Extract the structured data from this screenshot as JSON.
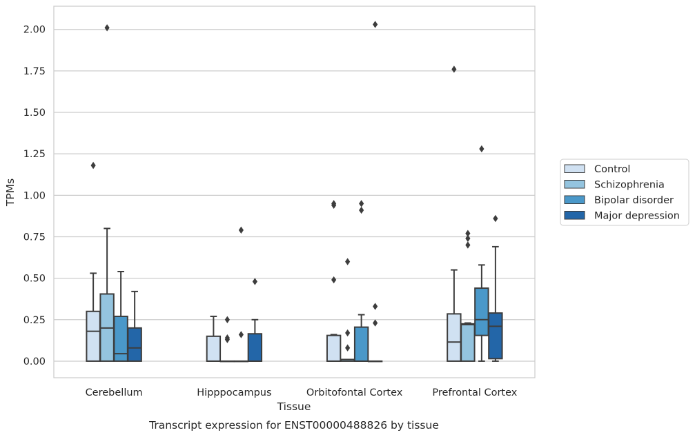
{
  "chart_data": {
    "type": "box",
    "title": "",
    "caption": "Transcript expression for ENST00000488826 by tissue",
    "xlabel": "Tissue",
    "ylabel": "TPMs",
    "ylim": [
      -0.1,
      2.14
    ],
    "yticks": [
      "0.00",
      "0.25",
      "0.50",
      "0.75",
      "1.00",
      "1.25",
      "1.50",
      "1.75",
      "2.00"
    ],
    "ytick_values": [
      0,
      0.25,
      0.5,
      0.75,
      1.0,
      1.25,
      1.5,
      1.75,
      2.0
    ],
    "grid": "horizontal",
    "legend_position": "right",
    "categories": [
      "Cerebellum",
      "Hipppocampus",
      "Orbitofontal Cortex",
      "Prefrontal Cortex"
    ],
    "series": [
      {
        "name": "Control",
        "color": "#d0e1f2",
        "boxes": [
          {
            "q1": 0,
            "median": 0.18,
            "q3": 0.3,
            "whisker_low": 0,
            "whisker_high": 0.53,
            "outliers": [
              1.18
            ]
          },
          {
            "q1": 0,
            "median": 0,
            "q3": 0.15,
            "whisker_low": 0,
            "whisker_high": 0.27,
            "outliers": []
          },
          {
            "q1": 0,
            "median": 0,
            "q3": 0.155,
            "whisker_low": 0,
            "whisker_high": 0.16,
            "outliers": [
              0.49,
              0.94,
              0.95
            ]
          },
          {
            "q1": 0,
            "median": 0.115,
            "q3": 0.285,
            "whisker_low": 0,
            "whisker_high": 0.55,
            "outliers": [
              1.76
            ]
          }
        ]
      },
      {
        "name": "Schizophrenia",
        "color": "#94c4df",
        "boxes": [
          {
            "q1": 0,
            "median": 0.2,
            "q3": 0.405,
            "whisker_low": 0,
            "whisker_high": 0.8,
            "outliers": [
              2.01
            ]
          },
          {
            "q1": 0,
            "median": 0,
            "q3": 0,
            "whisker_low": 0,
            "whisker_high": 0,
            "outliers": [
              0.13,
              0.14,
              0.25
            ]
          },
          {
            "q1": 0,
            "median": 0.01,
            "q3": 0.01,
            "whisker_low": 0,
            "whisker_high": 0.01,
            "outliers": [
              0.08,
              0.17,
              0.6
            ]
          },
          {
            "q1": 0,
            "median": 0.22,
            "q3": 0.225,
            "whisker_low": 0,
            "whisker_high": 0.23,
            "outliers": [
              0.7,
              0.74,
              0.77
            ]
          }
        ]
      },
      {
        "name": "Bipolar disorder",
        "color": "#4a98c9",
        "boxes": [
          {
            "q1": 0,
            "median": 0.045,
            "q3": 0.27,
            "whisker_low": 0,
            "whisker_high": 0.54,
            "outliers": []
          },
          {
            "q1": 0,
            "median": 0,
            "q3": 0,
            "whisker_low": 0,
            "whisker_high": 0,
            "outliers": [
              0.16,
              0.79
            ]
          },
          {
            "q1": 0,
            "median": 0,
            "q3": 0.205,
            "whisker_low": 0,
            "whisker_high": 0.28,
            "outliers": [
              0.91,
              0.95
            ]
          },
          {
            "q1": 0.155,
            "median": 0.25,
            "q3": 0.44,
            "whisker_low": 0,
            "whisker_high": 0.58,
            "outliers": [
              1.28
            ]
          }
        ]
      },
      {
        "name": "Major depression",
        "color": "#2366a8",
        "boxes": [
          {
            "q1": 0,
            "median": 0.08,
            "q3": 0.2,
            "whisker_low": 0,
            "whisker_high": 0.42,
            "outliers": []
          },
          {
            "q1": 0,
            "median": 0,
            "q3": 0.165,
            "whisker_low": 0,
            "whisker_high": 0.25,
            "outliers": [
              0.48
            ]
          },
          {
            "q1": 0,
            "median": 0,
            "q3": 0,
            "whisker_low": 0,
            "whisker_high": 0,
            "outliers": [
              0.23,
              0.33,
              2.03
            ]
          },
          {
            "q1": 0.015,
            "median": 0.21,
            "q3": 0.29,
            "whisker_low": 0,
            "whisker_high": 0.69,
            "outliers": [
              0.86
            ]
          }
        ]
      }
    ]
  }
}
